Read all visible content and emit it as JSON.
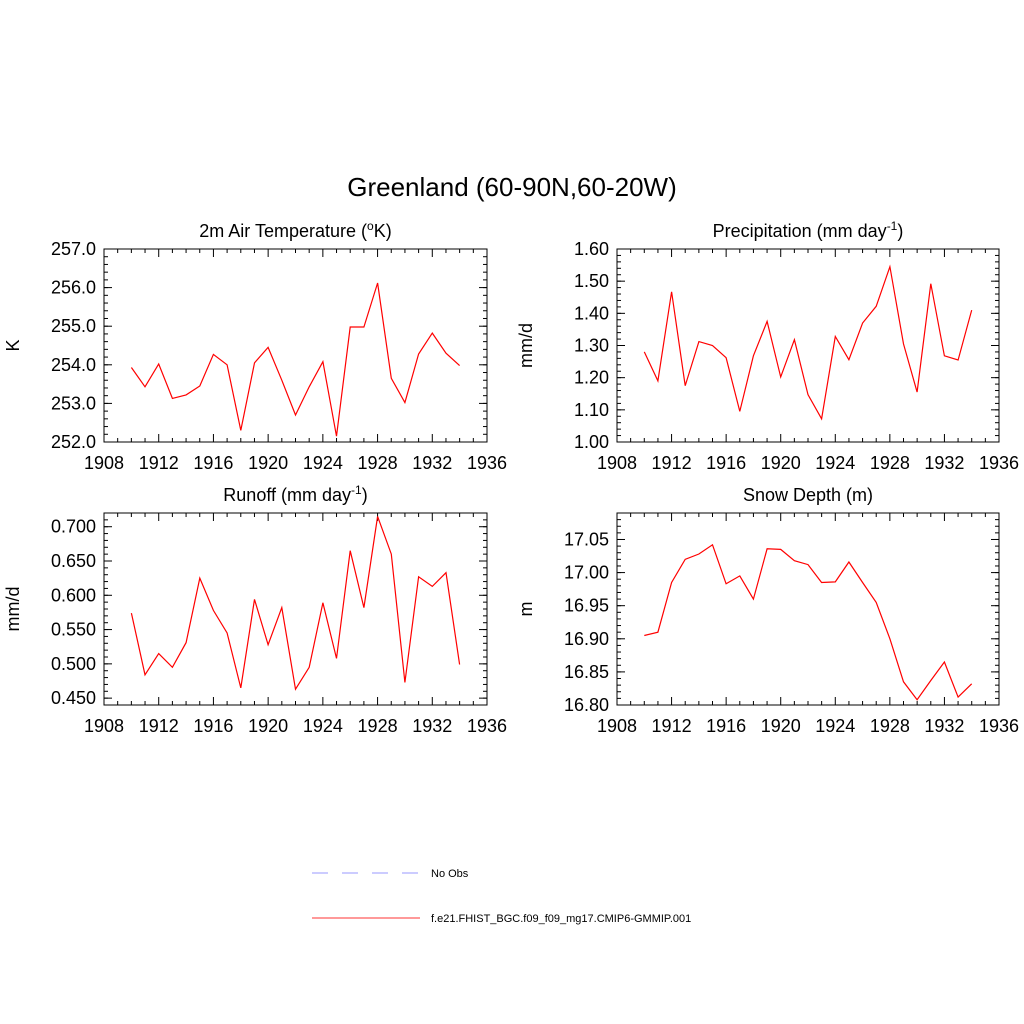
{
  "figure_title": "Greenland (60-90N,60-20W)",
  "legend": [
    {
      "label": "No Obs",
      "color": "#9999ff",
      "style": "dashed"
    },
    {
      "label": "f.e21.FHIST_BGC.f09_f09_mg17.CMIP6-GMMIP.001",
      "color": "#ff3333",
      "style": "solid"
    }
  ],
  "chart_data": [
    {
      "type": "line",
      "title": "2m Air Temperature (",
      "title_sup": "o",
      "title_after": "K)",
      "ylabel": "K",
      "xlim": [
        1908,
        1936
      ],
      "ylim": [
        252.0,
        257.0
      ],
      "xticks": [
        "1908",
        "1912",
        "1916",
        "1920",
        "1924",
        "1928",
        "1932",
        "1936"
      ],
      "yticks": [
        "252.0",
        "253.0",
        "254.0",
        "255.0",
        "256.0",
        "257.0"
      ],
      "x": [
        1910,
        1911,
        1912,
        1913,
        1914,
        1915,
        1916,
        1917,
        1918,
        1919,
        1920,
        1921,
        1922,
        1923,
        1924,
        1925,
        1926,
        1927,
        1928,
        1929,
        1930,
        1931,
        1932,
        1933,
        1934
      ],
      "series": [
        {
          "color": "#ff0000",
          "values": [
            253.93,
            253.43,
            254.02,
            253.13,
            253.22,
            253.45,
            254.27,
            254.0,
            252.3,
            254.05,
            254.45,
            253.6,
            252.7,
            253.43,
            254.08,
            252.15,
            254.98,
            254.98,
            256.12,
            253.65,
            253.02,
            254.28,
            254.82,
            254.3,
            253.98
          ]
        }
      ]
    },
    {
      "type": "line",
      "title": "Precipitation (mm day",
      "title_sup": "-1",
      "title_after": ")",
      "ylabel": "mm/d",
      "xlim": [
        1908,
        1936
      ],
      "ylim": [
        1.0,
        1.6
      ],
      "xticks": [
        "1908",
        "1912",
        "1916",
        "1920",
        "1924",
        "1928",
        "1932",
        "1936"
      ],
      "yticks": [
        "1.00",
        "1.10",
        "1.20",
        "1.30",
        "1.40",
        "1.50",
        "1.60"
      ],
      "x": [
        1910,
        1911,
        1912,
        1913,
        1914,
        1915,
        1916,
        1917,
        1918,
        1919,
        1920,
        1921,
        1922,
        1923,
        1924,
        1925,
        1926,
        1927,
        1928,
        1929,
        1930,
        1931,
        1932,
        1933,
        1934
      ],
      "series": [
        {
          "color": "#ff0000",
          "values": [
            1.28,
            1.19,
            1.467,
            1.175,
            1.312,
            1.3,
            1.262,
            1.095,
            1.268,
            1.375,
            1.202,
            1.318,
            1.147,
            1.072,
            1.328,
            1.256,
            1.37,
            1.422,
            1.545,
            1.305,
            1.155,
            1.492,
            1.268,
            1.255,
            1.41
          ]
        }
      ]
    },
    {
      "type": "line",
      "title": "Runoff (mm day",
      "title_sup": "-1",
      "title_after": ")",
      "ylabel": "mm/d",
      "xlim": [
        1908,
        1936
      ],
      "ylim": [
        0.44,
        0.72
      ],
      "xticks": [
        "1908",
        "1912",
        "1916",
        "1920",
        "1924",
        "1928",
        "1932",
        "1936"
      ],
      "yticks": [
        "0.450",
        "0.500",
        "0.550",
        "0.600",
        "0.650",
        "0.700"
      ],
      "x": [
        1910,
        1911,
        1912,
        1913,
        1914,
        1915,
        1916,
        1917,
        1918,
        1919,
        1920,
        1921,
        1922,
        1923,
        1924,
        1925,
        1926,
        1927,
        1928,
        1929,
        1930,
        1931,
        1932,
        1933,
        1934
      ],
      "series": [
        {
          "color": "#ff0000",
          "values": [
            0.574,
            0.484,
            0.515,
            0.495,
            0.531,
            0.625,
            0.578,
            0.545,
            0.465,
            0.594,
            0.528,
            0.582,
            0.463,
            0.495,
            0.589,
            0.508,
            0.665,
            0.582,
            0.715,
            0.66,
            0.473,
            0.627,
            0.613,
            0.633,
            0.499
          ]
        }
      ]
    },
    {
      "type": "line",
      "title": "Snow Depth (m)",
      "title_sup": "",
      "title_after": "",
      "ylabel": "m",
      "xlim": [
        1908,
        1936
      ],
      "ylim": [
        16.8,
        17.09
      ],
      "xticks": [
        "1908",
        "1912",
        "1916",
        "1920",
        "1924",
        "1928",
        "1932",
        "1936"
      ],
      "yticks": [
        "16.80",
        "16.85",
        "16.90",
        "16.95",
        "17.00",
        "17.05"
      ],
      "x": [
        1910,
        1911,
        1912,
        1913,
        1914,
        1915,
        1916,
        1917,
        1918,
        1919,
        1920,
        1921,
        1922,
        1923,
        1924,
        1925,
        1926,
        1927,
        1928,
        1929,
        1930,
        1931,
        1932,
        1933,
        1934
      ],
      "series": [
        {
          "color": "#ff0000",
          "values": [
            16.905,
            16.91,
            16.985,
            17.02,
            17.028,
            17.042,
            16.983,
            16.995,
            16.96,
            17.036,
            17.035,
            17.018,
            17.012,
            16.985,
            16.986,
            17.016,
            16.985,
            16.955,
            16.9,
            16.835,
            16.808,
            16.837,
            16.865,
            16.812,
            16.832
          ]
        }
      ]
    }
  ]
}
